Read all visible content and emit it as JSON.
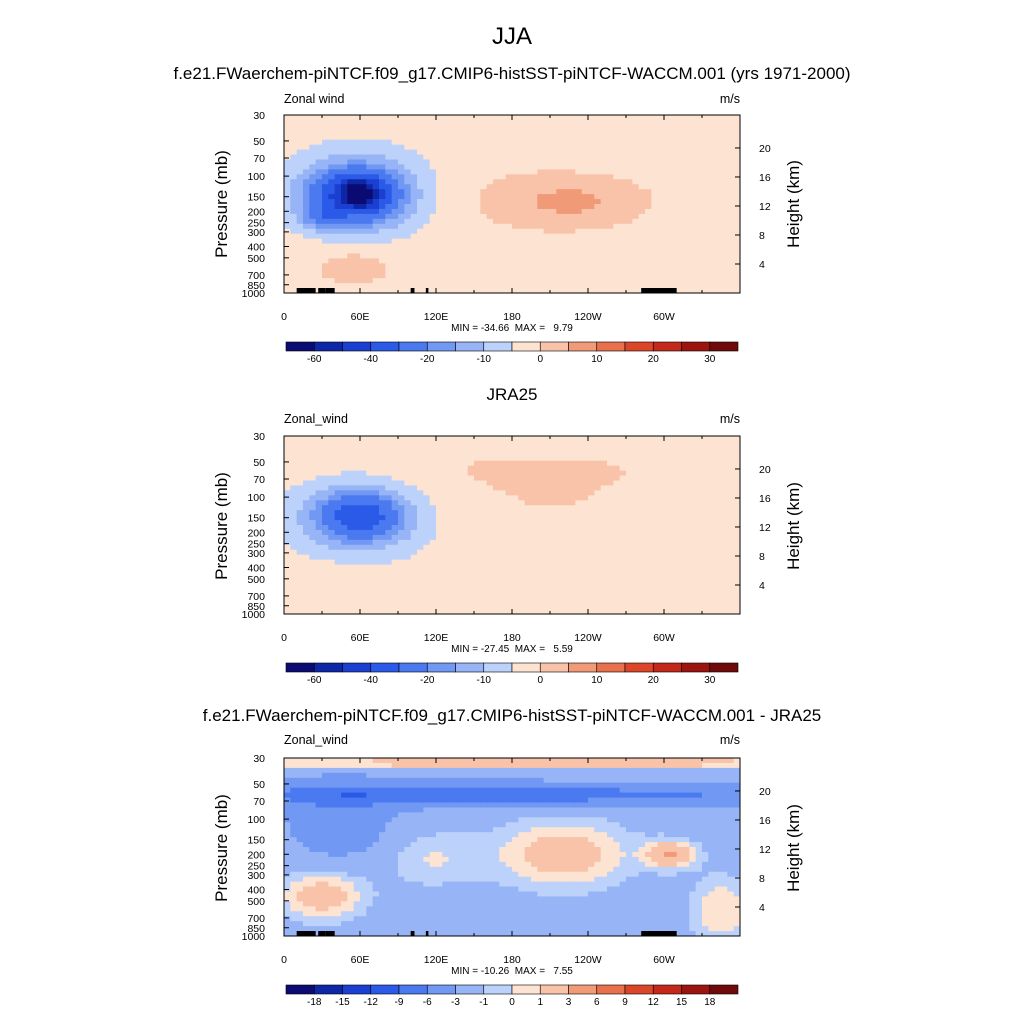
{
  "figure_title": "JJA",
  "chart_data": [
    {
      "type": "heatmap",
      "title": "f.e21.FWaerchem-piNTCF.f09_g17.CMIP6-histSST-piNTCF-WACCM.001 (yrs 1971-2000)",
      "left_string": "Zonal wind",
      "right_string": "m/s",
      "xlabel": "",
      "ylabel": "Pressure (mb)",
      "y2label": "Height (km)",
      "x_ticks": [
        "0",
        "60E",
        "120E",
        "180",
        "120W",
        "60W"
      ],
      "x_tick_values": [
        0,
        60,
        120,
        180,
        240,
        300
      ],
      "xlim": [
        0,
        360
      ],
      "y_ticks": [
        "30",
        "50",
        "70",
        "100",
        "150",
        "200",
        "250",
        "300",
        "400",
        "500",
        "700",
        "850",
        "1000"
      ],
      "y_tick_values": [
        30,
        50,
        70,
        100,
        150,
        200,
        250,
        300,
        400,
        500,
        700,
        850,
        1000
      ],
      "ylim": [
        1000,
        30
      ],
      "y_scale": "log",
      "y2_ticks": [
        "20",
        "16",
        "12",
        "8",
        "4"
      ],
      "y2_tick_values": [
        20,
        16,
        12,
        8,
        4
      ],
      "stats": "MIN = -34.66  MAX =   9.79",
      "min": -34.66,
      "max": 9.79,
      "colorbar_labels": [
        "-60",
        "-40",
        "-20",
        "-10",
        "0",
        "10",
        "20",
        "30"
      ],
      "colorbar_levels": [
        -70,
        -60,
        -50,
        -40,
        -30,
        -20,
        -15,
        -10,
        -5,
        0,
        5,
        10,
        15,
        20,
        25,
        30,
        35
      ],
      "background_value": -3,
      "features": [
        {
          "lon": 60,
          "p": 145,
          "rlon": 48,
          "rlogp": 0.34,
          "value": -15
        },
        {
          "lon": 55,
          "p": 145,
          "rlon": 35,
          "rlogp": 0.22,
          "value": -25
        },
        {
          "lon": 60,
          "p": 140,
          "rlon": 17,
          "rlogp": 0.13,
          "value": -32
        },
        {
          "lon": 30,
          "p": 220,
          "rlon": 16,
          "rlogp": 0.1,
          "value": -12
        },
        {
          "lon": 180,
          "p": 160,
          "rlon": 75,
          "rlogp": 0.42,
          "value": 2
        },
        {
          "lon": 230,
          "p": 165,
          "rlon": 60,
          "rlogp": 0.22,
          "value": 8
        },
        {
          "lon": 55,
          "p": 480,
          "rlon": 55,
          "rlogp": 0.3,
          "value": 2
        },
        {
          "lon": 55,
          "p": 620,
          "rlon": 25,
          "rlogp": 0.12,
          "value": 6
        },
        {
          "lon": 345,
          "p": 650,
          "rlon": 20,
          "rlogp": 0.3,
          "value": 2
        }
      ],
      "topography": [
        [
          10,
          25
        ],
        [
          27,
          33
        ],
        [
          30,
          32
        ],
        [
          33,
          40
        ],
        [
          100,
          103
        ],
        [
          112,
          114
        ],
        [
          282,
          310
        ]
      ]
    },
    {
      "type": "heatmap",
      "title": "JRA25",
      "left_string": "Zonal_wind",
      "right_string": "m/s",
      "xlabel": "",
      "ylabel": "Pressure (mb)",
      "y2label": "Height (km)",
      "x_ticks": [
        "0",
        "60E",
        "120E",
        "180",
        "120W",
        "60W"
      ],
      "x_tick_values": [
        0,
        60,
        120,
        180,
        240,
        300
      ],
      "xlim": [
        0,
        360
      ],
      "y_ticks": [
        "30",
        "50",
        "70",
        "100",
        "150",
        "200",
        "250",
        "300",
        "400",
        "500",
        "700",
        "850",
        "1000"
      ],
      "y_tick_values": [
        30,
        50,
        70,
        100,
        150,
        200,
        250,
        300,
        400,
        500,
        700,
        850,
        1000
      ],
      "ylim": [
        1000,
        30
      ],
      "y_scale": "log",
      "y2_ticks": [
        "20",
        "16",
        "12",
        "8",
        "4"
      ],
      "y2_tick_values": [
        20,
        16,
        12,
        8,
        4
      ],
      "stats": "MIN = -27.45  MAX =   5.59",
      "min": -27.45,
      "max": 5.59,
      "colorbar_labels": [
        "-60",
        "-40",
        "-20",
        "-10",
        "0",
        "10",
        "20",
        "30"
      ],
      "colorbar_levels": [
        -70,
        -60,
        -50,
        -40,
        -30,
        -20,
        -15,
        -10,
        -5,
        0,
        5,
        10,
        15,
        20,
        25,
        30,
        35
      ],
      "background_value": -3,
      "features": [
        {
          "lon": 180,
          "p": 55,
          "rlon": 200,
          "rlogp": 0.18,
          "value": 2
        },
        {
          "lon": 210,
          "p": 110,
          "rlon": 110,
          "rlogp": 0.4,
          "value": 3
        },
        {
          "lon": 60,
          "p": 150,
          "rlon": 50,
          "rlogp": 0.32,
          "value": -14
        },
        {
          "lon": 60,
          "p": 145,
          "rlon": 30,
          "rlogp": 0.18,
          "value": -22
        },
        {
          "lon": 55,
          "p": 580,
          "rlon": 50,
          "rlogp": 0.25,
          "value": 2
        },
        {
          "lon": 300,
          "p": 450,
          "rlon": 40,
          "rlogp": 0.2,
          "value": 2
        }
      ],
      "topography": []
    },
    {
      "type": "heatmap",
      "title": "f.e21.FWaerchem-piNTCF.f09_g17.CMIP6-histSST-piNTCF-WACCM.001 - JRA25",
      "left_string": "Zonal_wind",
      "right_string": "m/s",
      "xlabel": "",
      "ylabel": "Pressure (mb)",
      "y2label": "Height (km)",
      "x_ticks": [
        "0",
        "60E",
        "120E",
        "180",
        "120W",
        "60W"
      ],
      "x_tick_values": [
        0,
        60,
        120,
        180,
        240,
        300
      ],
      "xlim": [
        0,
        360
      ],
      "y_ticks": [
        "30",
        "50",
        "70",
        "100",
        "150",
        "200",
        "250",
        "300",
        "400",
        "500",
        "700",
        "850",
        "1000"
      ],
      "y_tick_values": [
        30,
        50,
        70,
        100,
        150,
        200,
        250,
        300,
        400,
        500,
        700,
        850,
        1000
      ],
      "ylim": [
        1000,
        30
      ],
      "y_scale": "log",
      "y2_ticks": [
        "20",
        "16",
        "12",
        "8",
        "4"
      ],
      "y2_tick_values": [
        20,
        16,
        12,
        8,
        4
      ],
      "stats": "MIN = -10.26  MAX =   7.55",
      "min": -10.26,
      "max": 7.55,
      "colorbar_labels": [
        "-18",
        "-15",
        "-12",
        "-9",
        "-6",
        "-3",
        "-1",
        "0",
        "1",
        "3",
        "6",
        "9",
        "12",
        "15",
        "18"
      ],
      "colorbar_levels": [
        -21,
        -18,
        -15,
        -12,
        -9,
        -6,
        -3,
        -1,
        0,
        1,
        3,
        6,
        9,
        12,
        15,
        18,
        21
      ],
      "background_value": -2,
      "features": [
        {
          "lon": 180,
          "p": 33,
          "rlon": 500,
          "rlogp": 0.05,
          "value": 4
        },
        {
          "lon": 180,
          "p": 62,
          "rlon": 320,
          "rlogp": 0.1,
          "value": -5
        },
        {
          "lon": 140,
          "p": 63,
          "rlon": 90,
          "rlogp": 0.05,
          "value": -2
        },
        {
          "lon": 45,
          "p": 100,
          "rlon": 40,
          "rlogp": 0.35,
          "value": -3
        },
        {
          "lon": 220,
          "p": 200,
          "rlon": 55,
          "rlogp": 0.3,
          "value": 4
        },
        {
          "lon": 305,
          "p": 200,
          "rlon": 20,
          "rlogp": 0.12,
          "value": 5
        },
        {
          "lon": 115,
          "p": 220,
          "rlon": 40,
          "rlogp": 0.25,
          "value": 2
        },
        {
          "lon": 30,
          "p": 450,
          "rlon": 35,
          "rlogp": 0.22,
          "value": 4
        },
        {
          "lon": 345,
          "p": 600,
          "rlon": 25,
          "rlogp": 0.3,
          "value": 3
        }
      ],
      "topography": [
        [
          10,
          25
        ],
        [
          27,
          33
        ],
        [
          30,
          32
        ],
        [
          33,
          40
        ],
        [
          100,
          103
        ],
        [
          112,
          114
        ],
        [
          282,
          310
        ]
      ]
    }
  ]
}
